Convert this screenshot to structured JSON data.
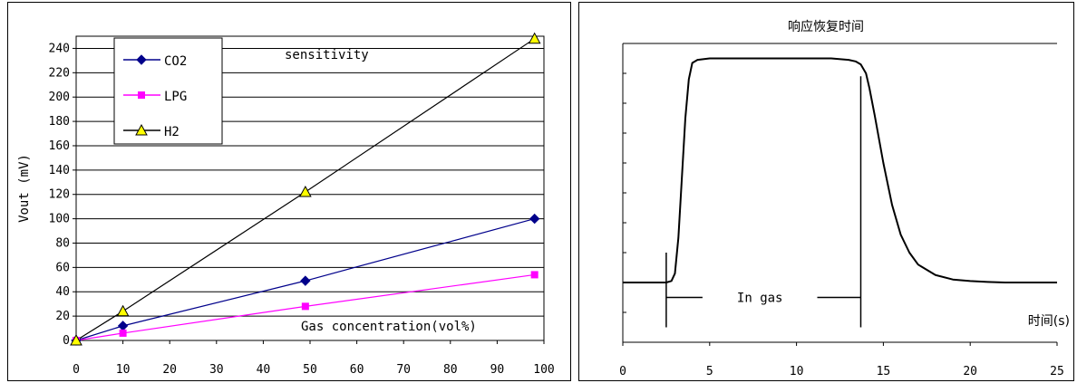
{
  "chart_data": [
    {
      "type": "line",
      "title": "sensitivity",
      "xlabel": "Gas concentration(vol%)",
      "ylabel": "Vout (mV)",
      "x_ticks": [
        "0",
        "10",
        "20",
        "30",
        "40",
        "50",
        "60",
        "70",
        "80",
        "90",
        "100"
      ],
      "y_ticks": [
        "0",
        "20",
        "40",
        "60",
        "80",
        "100",
        "120",
        "140",
        "160",
        "180",
        "200",
        "220",
        "240"
      ],
      "xlim": [
        0,
        100
      ],
      "ylim": [
        0,
        250
      ],
      "grid": "horizontal",
      "legend_position": "top-left",
      "series": [
        {
          "name": "CO2",
          "marker": "diamond",
          "color": "#00008b",
          "x": [
            0,
            10,
            49,
            98
          ],
          "y": [
            0,
            12,
            49,
            100
          ]
        },
        {
          "name": "LPG",
          "marker": "square",
          "color": "#ff00ff",
          "x": [
            0,
            10,
            49,
            98
          ],
          "y": [
            0,
            6,
            28,
            54
          ]
        },
        {
          "name": "H2",
          "marker": "triangle",
          "color": "#000000",
          "marker_fill": "#ffff00",
          "x": [
            0,
            10,
            49,
            98
          ],
          "y": [
            0,
            24,
            122,
            248
          ]
        }
      ]
    },
    {
      "type": "line",
      "title": "响应恢复时间",
      "xlabel": "时间(s)",
      "ylabel": "",
      "x_ticks": [
        "0",
        "5",
        "10",
        "15",
        "20",
        "25"
      ],
      "xlim": [
        0,
        25
      ],
      "ylim": [
        0,
        10
      ],
      "y_tick_labels": false,
      "annotations": [
        "In gas"
      ],
      "annotation_range": [
        2.5,
        13.7
      ],
      "series": [
        {
          "color": "#000000",
          "x": [
            0,
            2.5,
            2.8,
            3.0,
            3.2,
            3.4,
            3.6,
            3.8,
            4.0,
            4.3,
            5,
            8,
            12,
            13.0,
            13.4,
            13.7,
            14.0,
            14.2,
            14.5,
            15,
            15.5,
            16,
            16.5,
            17,
            18,
            19,
            20,
            21,
            22,
            25
          ],
          "y": [
            2.0,
            2.0,
            2.05,
            2.3,
            3.5,
            5.5,
            7.5,
            8.8,
            9.35,
            9.45,
            9.5,
            9.5,
            9.5,
            9.45,
            9.4,
            9.3,
            9.0,
            8.5,
            7.6,
            6.0,
            4.6,
            3.6,
            3.0,
            2.6,
            2.25,
            2.1,
            2.05,
            2.02,
            2.0,
            2.0
          ]
        }
      ]
    }
  ]
}
